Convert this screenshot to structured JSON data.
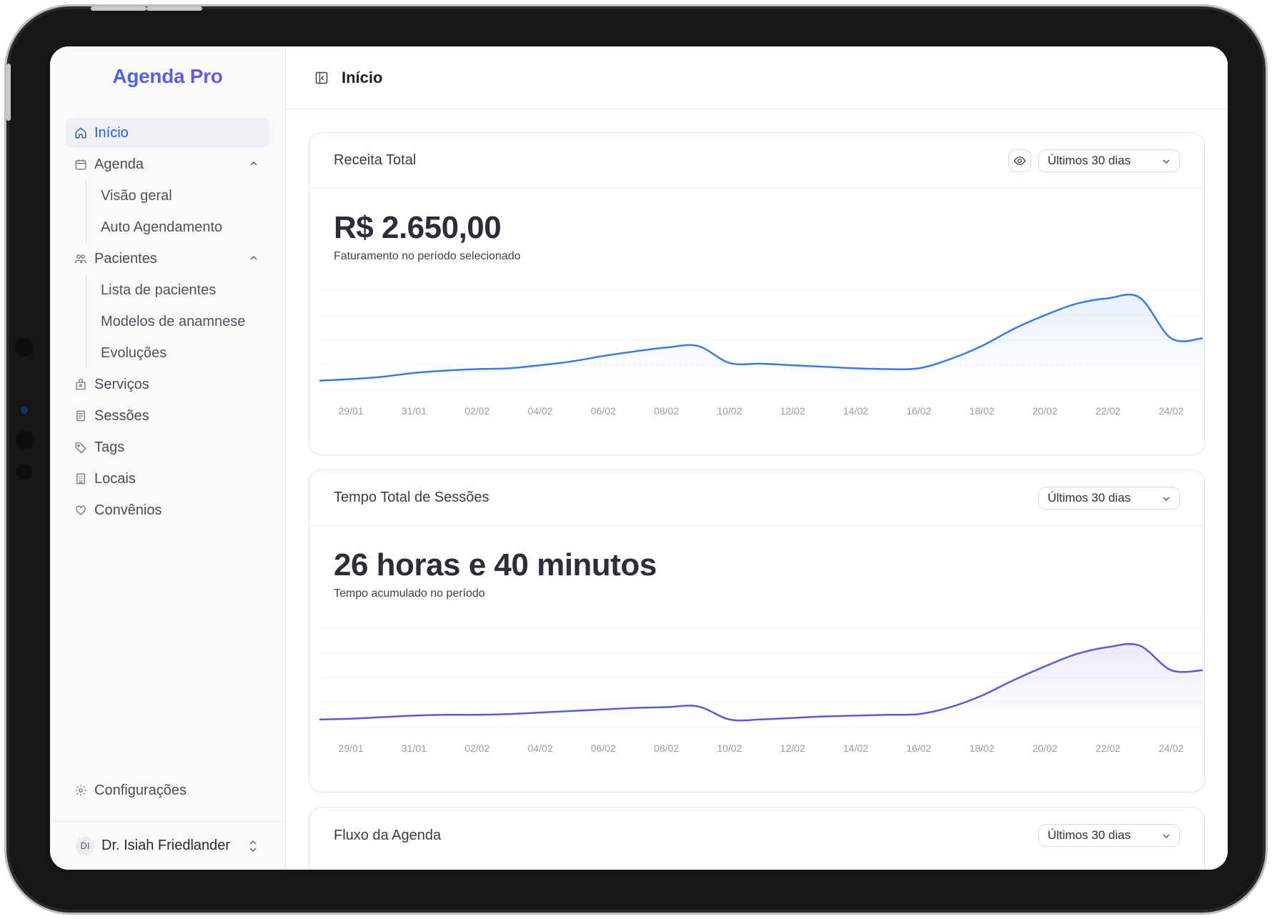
{
  "app": {
    "brand": "Agenda Pro",
    "page_title": "Início"
  },
  "sidebar": {
    "items": [
      {
        "key": "inicio",
        "label": "Início",
        "icon": "home-icon",
        "active": true
      },
      {
        "key": "agenda",
        "label": "Agenda",
        "icon": "calendar-icon",
        "expanded": true,
        "children": [
          {
            "label": "Visão geral"
          },
          {
            "label": "Auto Agendamento"
          }
        ]
      },
      {
        "key": "pacientes",
        "label": "Pacientes",
        "icon": "users-icon",
        "expanded": true,
        "children": [
          {
            "label": "Lista de pacientes"
          },
          {
            "label": "Modelos de anamnese"
          },
          {
            "label": "Evoluções"
          }
        ]
      },
      {
        "key": "servicos",
        "label": "Serviços",
        "icon": "bag-icon"
      },
      {
        "key": "sessoes",
        "label": "Sessões",
        "icon": "document-icon"
      },
      {
        "key": "tags",
        "label": "Tags",
        "icon": "tag-icon"
      },
      {
        "key": "locais",
        "label": "Locais",
        "icon": "building-icon"
      },
      {
        "key": "convenios",
        "label": "Convênios",
        "icon": "heart-icon"
      }
    ],
    "settings_label": "Configurações",
    "user": {
      "initials": "DI",
      "name": "Dr. Isiah Friedlander"
    }
  },
  "cards": {
    "revenue": {
      "title": "Receita Total",
      "period": "Últimos 30 dias",
      "value": "R$ 2.650,00",
      "caption": "Faturamento no período selecionado"
    },
    "sessions": {
      "title": "Tempo Total de Sessões",
      "period": "Últimos 30 dias",
      "value": "26 horas e 40 minutos",
      "caption": "Tempo acumulado no período"
    },
    "flow": {
      "title": "Fluxo da Agenda",
      "period": "Últimos 30 dias"
    }
  },
  "chart_data": [
    {
      "type": "area",
      "color": "#3b7ae0",
      "x": [
        "28/01",
        "29/01",
        "30/01",
        "31/01",
        "01/02",
        "02/02",
        "03/02",
        "04/02",
        "05/02",
        "06/02",
        "07/02",
        "08/02",
        "09/02",
        "10/02",
        "11/02",
        "12/02",
        "13/02",
        "14/02",
        "15/02",
        "16/02",
        "17/02",
        "18/02",
        "19/02",
        "20/02",
        "21/02",
        "22/02",
        "23/02",
        "24/02",
        "25/02"
      ],
      "values": [
        5,
        7,
        10,
        15,
        18,
        20,
        21,
        25,
        30,
        37,
        43,
        48,
        50,
        28,
        27,
        25,
        23,
        21,
        20,
        21,
        33,
        50,
        72,
        90,
        105,
        112,
        113,
        60,
        60
      ],
      "tick_labels": [
        "29/01",
        "31/01",
        "02/02",
        "04/02",
        "06/02",
        "08/02",
        "10/02",
        "12/02",
        "14/02",
        "16/02",
        "18/02",
        "20/02",
        "22/02",
        "24/02"
      ],
      "ylim": [
        0,
        130
      ],
      "grid": true
    },
    {
      "type": "area",
      "color": "#5a5bd6",
      "x": [
        "28/01",
        "29/01",
        "30/01",
        "31/01",
        "01/02",
        "02/02",
        "03/02",
        "04/02",
        "05/02",
        "06/02",
        "07/02",
        "08/02",
        "09/02",
        "10/02",
        "11/02",
        "12/02",
        "13/02",
        "14/02",
        "15/02",
        "16/02",
        "17/02",
        "18/02",
        "19/02",
        "20/02",
        "21/02",
        "22/02",
        "23/02",
        "24/02",
        "25/02"
      ],
      "values": [
        3,
        4,
        6,
        8,
        9,
        9,
        10,
        12,
        14,
        16,
        18,
        19,
        20,
        3,
        3,
        5,
        7,
        8,
        9,
        10,
        19,
        34,
        54,
        72,
        88,
        97,
        99,
        67,
        67
      ],
      "tick_labels": [
        "29/01",
        "31/01",
        "02/02",
        "04/02",
        "06/02",
        "08/02",
        "10/02",
        "12/02",
        "14/02",
        "16/02",
        "18/02",
        "20/02",
        "22/02",
        "24/02"
      ],
      "ylim": [
        0,
        130
      ],
      "grid": true
    }
  ]
}
